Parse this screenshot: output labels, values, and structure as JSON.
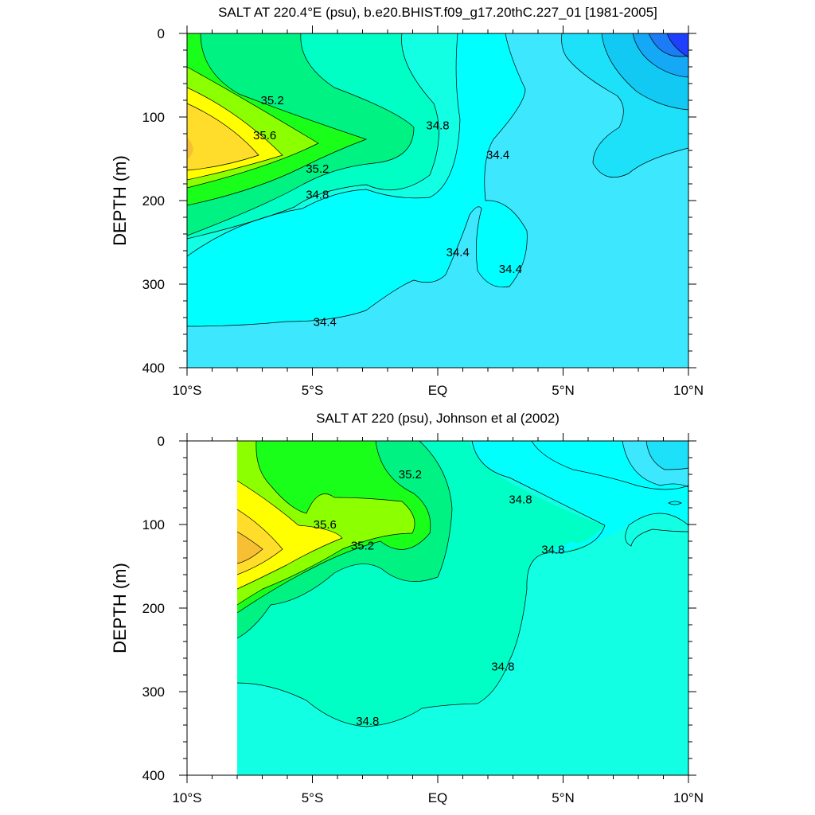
{
  "colors": {
    "level_fills": [
      "#1f3fff",
      "#1c7cf5",
      "#14a8f6",
      "#12c9f4",
      "#1de1f8",
      "#3de8ff",
      "#00ffff",
      "#12ffe4",
      "#00ffc4",
      "#00f282",
      "#1aff1a",
      "#8cff00",
      "#ffff00",
      "#ffdd2a",
      "#f7c034"
    ],
    "levels": [
      33.0,
      33.2,
      33.4,
      33.6,
      33.8,
      34.0,
      34.2,
      34.4,
      34.6,
      34.8,
      35.0,
      35.2,
      35.4,
      35.6,
      35.8
    ],
    "contour_line": "#000000"
  },
  "chart_data": [
    {
      "type": "heatmap",
      "title": "SALT AT 220.4°E (psu), b.e20.BHIST.f09_g17.20thC.227_01 [1981-2005]",
      "xlabel": "",
      "ylabel": "DEPTH (m)",
      "xlim": [
        -10,
        10
      ],
      "ylim": [
        400,
        0
      ],
      "x_ticks": [
        -10,
        -5,
        0,
        5,
        10
      ],
      "x_tick_labels": [
        "10°S",
        "5°S",
        "EQ",
        "5°N",
        "10°N"
      ],
      "y_ticks": [
        0,
        100,
        200,
        300,
        400
      ],
      "y_tick_labels": [
        "0",
        "100",
        "200",
        "300",
        "400"
      ],
      "contour_labels": [
        {
          "text": "35.2",
          "lat": -6.6,
          "depth": 80
        },
        {
          "text": "35.6",
          "lat": -6.9,
          "depth": 122
        },
        {
          "text": "35.2",
          "lat": -4.8,
          "depth": 162
        },
        {
          "text": "34.8",
          "lat": 0.0,
          "depth": 110
        },
        {
          "text": "34.4",
          "lat": 2.4,
          "depth": 145
        },
        {
          "text": "34.8",
          "lat": -4.8,
          "depth": 193
        },
        {
          "text": "34.4",
          "lat": 0.8,
          "depth": 262
        },
        {
          "text": "34.4",
          "lat": 2.9,
          "depth": 282
        },
        {
          "text": "34.4",
          "lat": -4.5,
          "depth": 345
        }
      ]
    },
    {
      "type": "heatmap",
      "title": "SALT AT 220 (psu), Johnson et al (2002)",
      "xlabel": "",
      "ylabel": "DEPTH (m)",
      "xlim": [
        -10,
        10
      ],
      "ylim": [
        400,
        0
      ],
      "x_ticks": [
        -10,
        -5,
        0,
        5,
        10
      ],
      "x_tick_labels": [
        "10°S",
        "5°S",
        "EQ",
        "5°N",
        "10°N"
      ],
      "y_ticks": [
        0,
        100,
        200,
        300,
        400
      ],
      "y_tick_labels": [
        "0",
        "100",
        "200",
        "300",
        "400"
      ],
      "data_start_lat": -8,
      "contour_labels": [
        {
          "text": "35.2",
          "lat": -1.1,
          "depth": 40
        },
        {
          "text": "34.8",
          "lat": 3.3,
          "depth": 70
        },
        {
          "text": "35.6",
          "lat": -4.5,
          "depth": 100
        },
        {
          "text": "35.2",
          "lat": -3.0,
          "depth": 125
        },
        {
          "text": "34.8",
          "lat": 4.6,
          "depth": 130
        },
        {
          "text": "34.8",
          "lat": 2.6,
          "depth": 270
        },
        {
          "text": "34.8",
          "lat": -2.8,
          "depth": 335
        }
      ]
    }
  ]
}
